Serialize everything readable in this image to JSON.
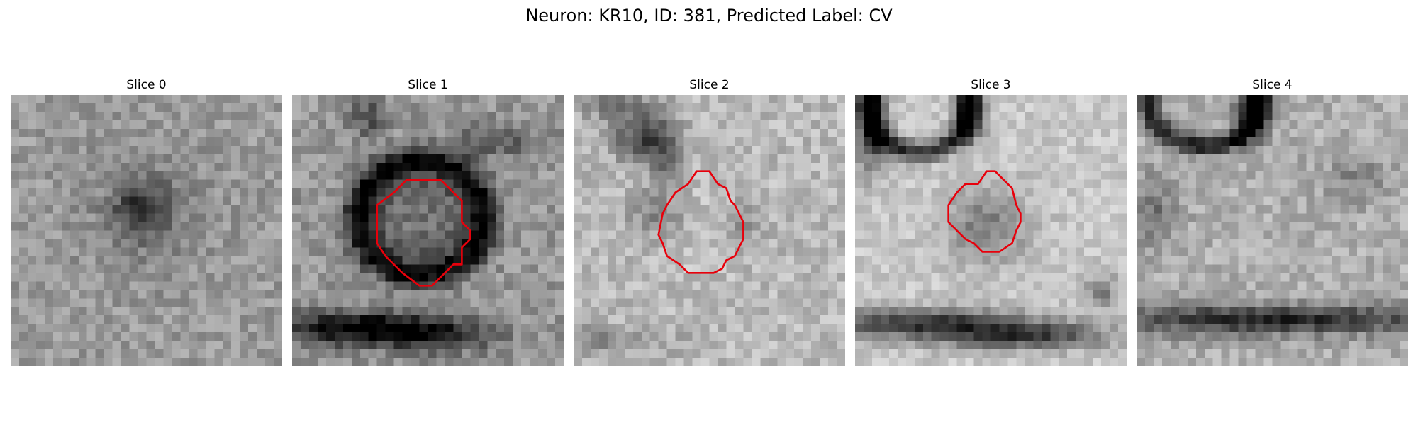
{
  "figure": {
    "title": "Neuron: KR10, ID: 381, Predicted Label: CV"
  },
  "panels": [
    {
      "label": "Slice 0"
    },
    {
      "label": "Slice 1"
    },
    {
      "label": "Slice 2"
    },
    {
      "label": "Slice 3"
    },
    {
      "label": "Slice 4"
    }
  ],
  "colors": {
    "contour": "#e8000b",
    "background": "#ffffff"
  }
}
